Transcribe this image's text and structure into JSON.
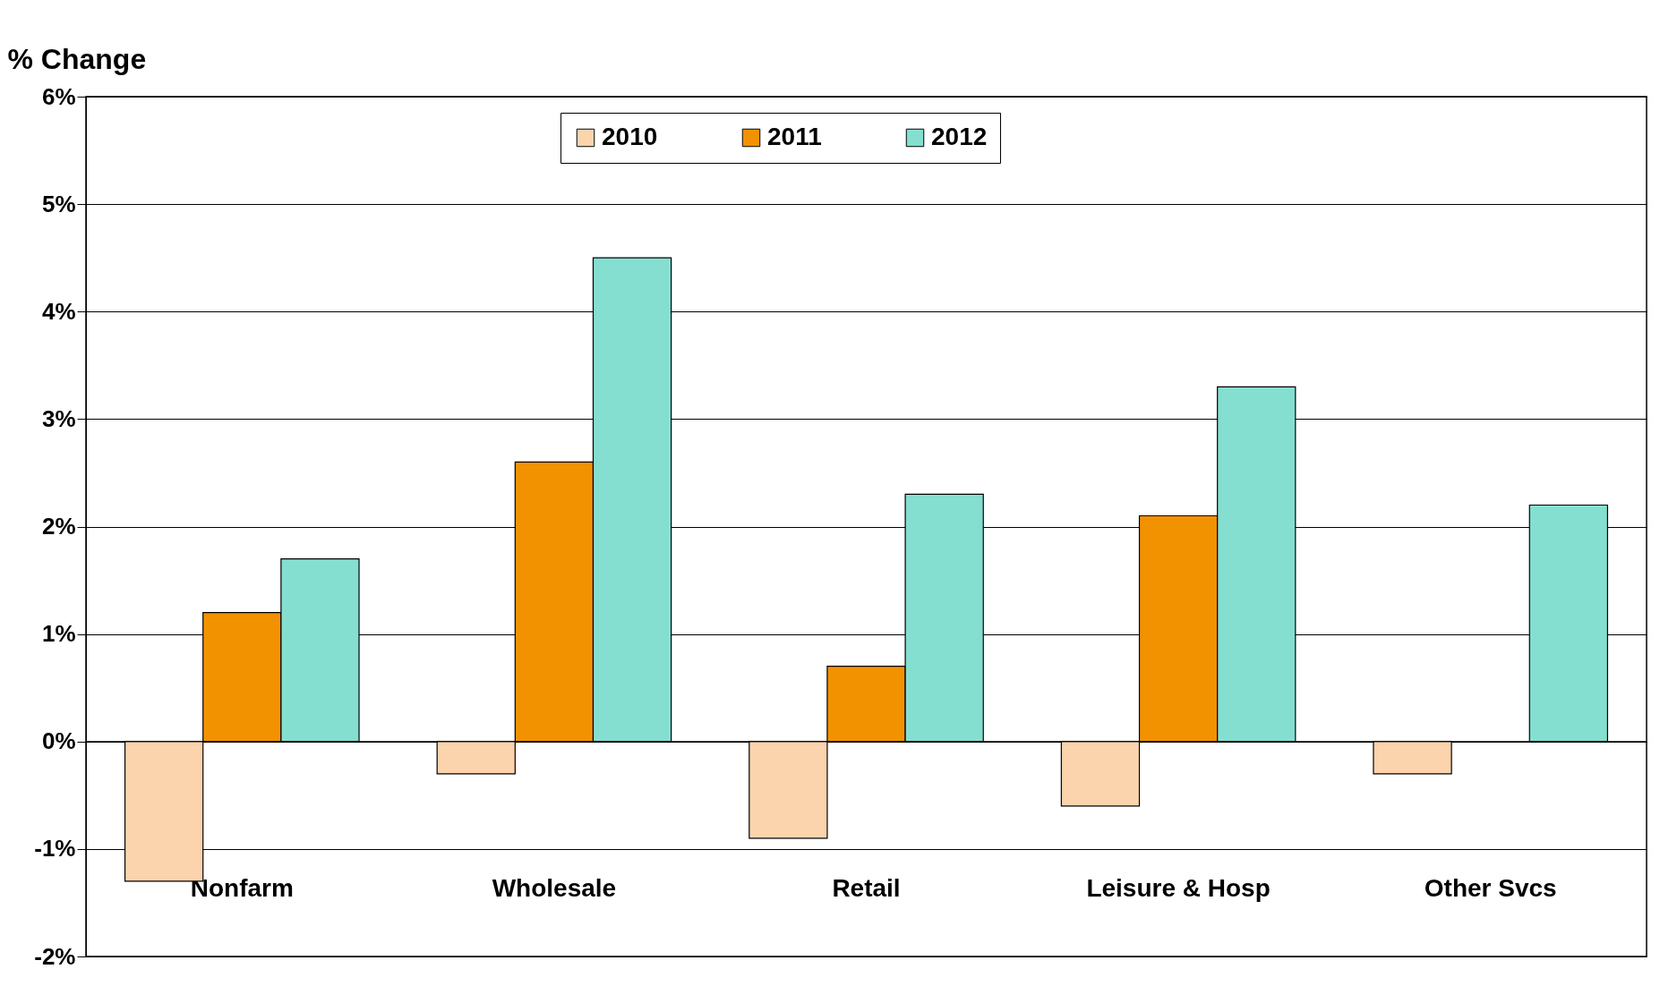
{
  "chart_data": {
    "type": "bar",
    "ylabel": "% Change",
    "categories": [
      "Nonfarm",
      "Wholesale",
      "Retail",
      "Leisure & Hosp",
      "Other Svcs"
    ],
    "series": [
      {
        "name": "2010",
        "color": "#fbd3ac",
        "values": [
          -1.3,
          -0.3,
          -0.9,
          -0.6,
          -0.3
        ]
      },
      {
        "name": "2011",
        "color": "#f39200",
        "values": [
          1.2,
          2.6,
          0.7,
          2.1,
          null
        ]
      },
      {
        "name": "2012",
        "color": "#84dfd0",
        "values": [
          1.7,
          4.5,
          2.3,
          3.3,
          2.2
        ]
      }
    ],
    "ylim": [
      -2,
      6
    ],
    "yticks": [
      {
        "value": -2,
        "label": "-2%"
      },
      {
        "value": -1,
        "label": "-1%"
      },
      {
        "value": 0,
        "label": "0%"
      },
      {
        "value": 1,
        "label": "1%"
      },
      {
        "value": 2,
        "label": "2%"
      },
      {
        "value": 3,
        "label": "3%"
      },
      {
        "value": 4,
        "label": "4%"
      },
      {
        "value": 5,
        "label": "5%"
      },
      {
        "value": 6,
        "label": "6%"
      }
    ],
    "grid": "y",
    "legend": "top"
  }
}
